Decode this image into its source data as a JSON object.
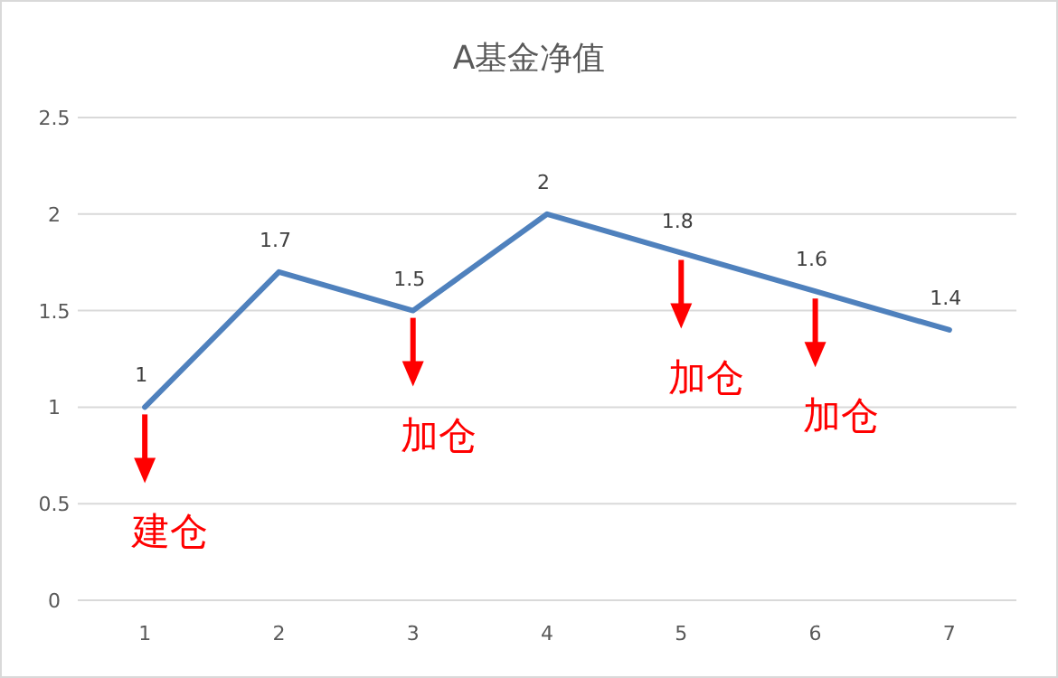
{
  "chart_data": {
    "type": "line",
    "title": "A基金净值",
    "categories": [
      "1",
      "2",
      "3",
      "4",
      "5",
      "6",
      "7"
    ],
    "series": [
      {
        "color": "#4f81bd",
        "values": [
          1,
          1.7,
          1.5,
          2,
          1.8,
          1.6,
          1.4
        ]
      }
    ],
    "ylim": [
      0,
      2.5
    ],
    "yticks": [
      0,
      0.5,
      1,
      1.5,
      2,
      2.5
    ],
    "grid": "y",
    "data_labels": true,
    "marker": "none",
    "annotations": [
      {
        "text": "建仓",
        "x": "1",
        "y": 1
      },
      {
        "text": "加仓",
        "x": "3",
        "y": 1.5
      },
      {
        "text": "加仓",
        "x": "5",
        "y": 1.8
      },
      {
        "text": "加仓",
        "x": "6",
        "y": 1.6
      }
    ]
  }
}
